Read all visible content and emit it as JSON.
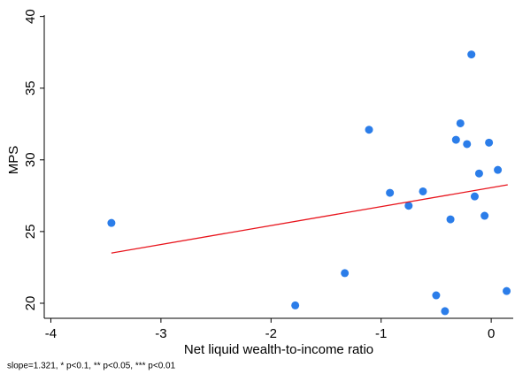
{
  "chart_data": {
    "type": "scatter",
    "x_label": "Net liquid wealth-to-income ratio",
    "y_label": "MPS",
    "note": "slope=1.321, * p<0.1, ** p<0.05, *** p<0.01",
    "x": [
      -3.45,
      -1.78,
      -1.33,
      -1.11,
      -0.92,
      -0.75,
      -0.62,
      -0.5,
      -0.42,
      -0.37,
      -0.32,
      -0.28,
      -0.22,
      -0.18,
      -0.15,
      -0.11,
      -0.06,
      -0.02,
      0.06,
      0.14
    ],
    "values": [
      25.6,
      19.85,
      22.1,
      32.1,
      27.7,
      26.8,
      27.8,
      20.55,
      19.45,
      25.85,
      31.4,
      32.55,
      31.1,
      37.35,
      27.45,
      29.05,
      26.1,
      31.2,
      29.3,
      20.85
    ],
    "color": "#2b7de9",
    "fit": {
      "x": [
        -3.45,
        0.15
      ],
      "y": [
        23.5,
        28.26
      ],
      "color": "#e8141c"
    },
    "xlim": [
      -4.06,
      0.2
    ],
    "ylim": [
      18.95,
      40.1
    ],
    "xticks": [
      -4,
      -3,
      -2,
      -1,
      0
    ],
    "yticks": [
      20,
      25,
      30,
      35,
      40
    ],
    "grid": false
  }
}
